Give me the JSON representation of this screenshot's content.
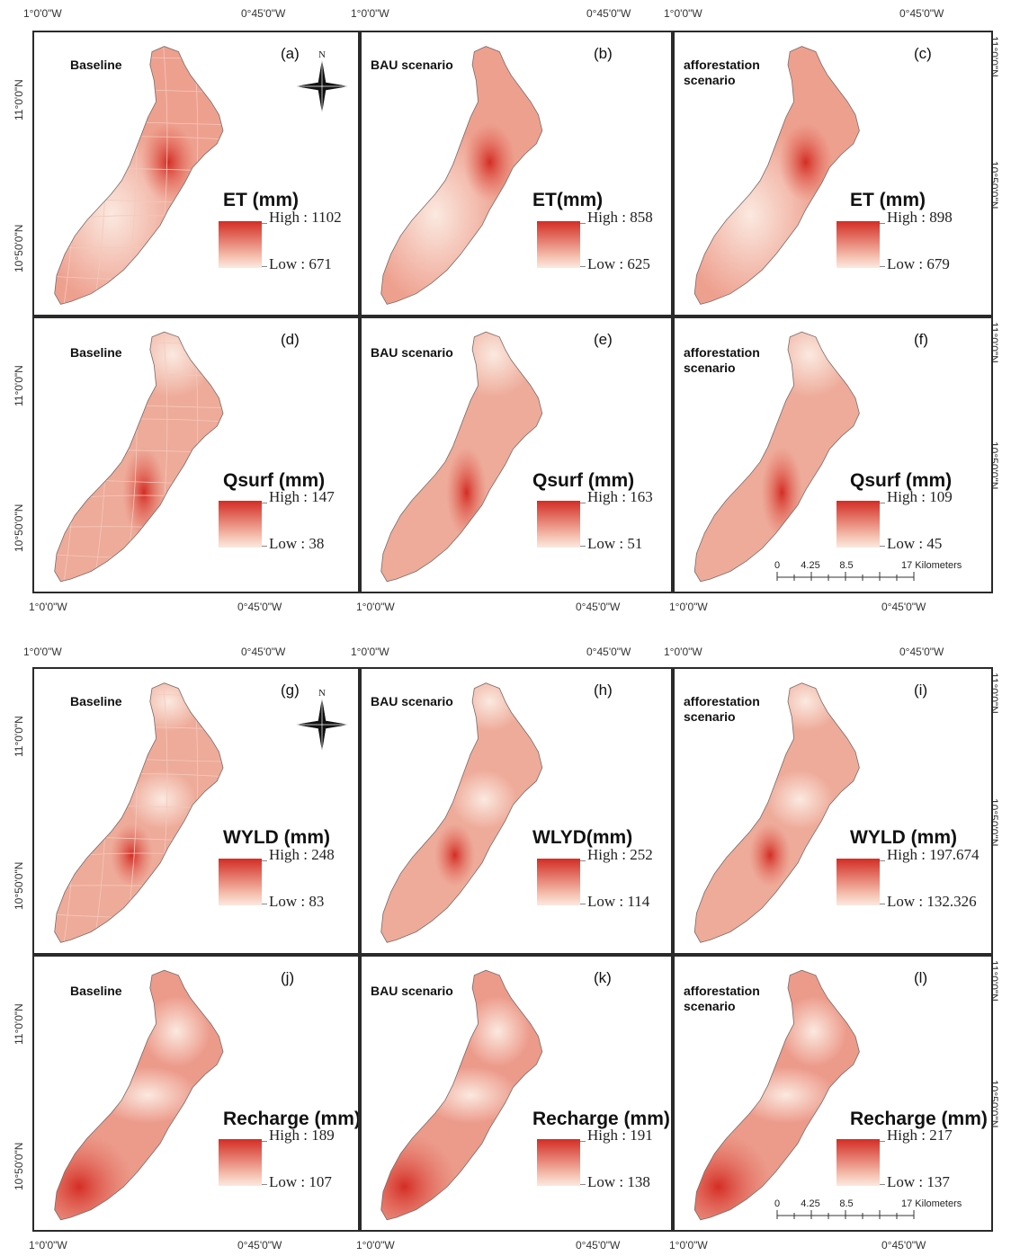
{
  "grid": {
    "lon_left": "1°0'0\"W",
    "lon_right": "0°45'0\"W",
    "lat_top": "11°0'0\"N",
    "lat_mid": "10°50'0\"N"
  },
  "panels": [
    {
      "tag": "(a)",
      "scenario": "Baseline",
      "variable": "ET (mm)",
      "high": "High : 1102",
      "low": "Low : 671",
      "style": "discrete",
      "hot": "center"
    },
    {
      "tag": "(b)",
      "scenario": "BAU scenario",
      "variable": "ET(mm)",
      "high": "High : 858",
      "low": "Low : 625",
      "style": "smooth",
      "hot": "center"
    },
    {
      "tag": "(c)",
      "scenario": "afforestation\nscenario",
      "variable": "ET (mm)",
      "high": "High : 898",
      "low": "Low : 679",
      "style": "smooth",
      "hot": "center"
    },
    {
      "tag": "(d)",
      "scenario": "Baseline",
      "variable": "Qsurf (mm)",
      "high": "High : 147",
      "low": "Low : 38",
      "style": "discrete",
      "hot": "midlow"
    },
    {
      "tag": "(e)",
      "scenario": "BAU scenario",
      "variable": "Qsurf (mm)",
      "high": "High : 163",
      "low": "Low : 51",
      "style": "smooth",
      "hot": "midlow"
    },
    {
      "tag": "(f)",
      "scenario": "afforestation\nscenario",
      "variable": "Qsurf (mm)",
      "high": "High : 109",
      "low": "Low : 45",
      "style": "smooth",
      "hot": "midlow"
    },
    {
      "tag": "(g)",
      "scenario": "Baseline",
      "variable": "WYLD (mm)",
      "high": "High : 248",
      "low": "Low : 83",
      "style": "discrete",
      "hot": "south"
    },
    {
      "tag": "(h)",
      "scenario": "BAU scenario",
      "variable": "WLYD(mm)",
      "high": "High : 252",
      "low": "Low : 114",
      "style": "smooth",
      "hot": "south"
    },
    {
      "tag": "(i)",
      "scenario": "afforestation\nscenario",
      "variable": "WYLD (mm)",
      "high": "High : 197.674",
      "low": "Low : 132.326",
      "style": "smooth",
      "hot": "south"
    },
    {
      "tag": "(j)",
      "scenario": "Baseline",
      "variable": "Recharge (mm)",
      "high": "High : 189",
      "low": "Low : 107",
      "style": "smooth",
      "hot": "southwest"
    },
    {
      "tag": "(k)",
      "scenario": "BAU scenario",
      "variable": "Recharge (mm)",
      "high": "High : 191",
      "low": "Low : 138",
      "style": "smooth",
      "hot": "southwest"
    },
    {
      "tag": "(l)",
      "scenario": "afforestation\nscenario",
      "variable": "Recharge (mm)",
      "high": "High : 217",
      "low": "Low : 137",
      "style": "smooth",
      "hot": "southwest"
    }
  ],
  "north_arrow": {
    "label": "N"
  },
  "scale_bar": {
    "ticks": [
      "0",
      "4.25",
      "8.5",
      "17 Kilometers"
    ]
  },
  "colors": {
    "high": "#d42d24",
    "low": "#fbe9e0",
    "frame": "#2a2a2a"
  }
}
